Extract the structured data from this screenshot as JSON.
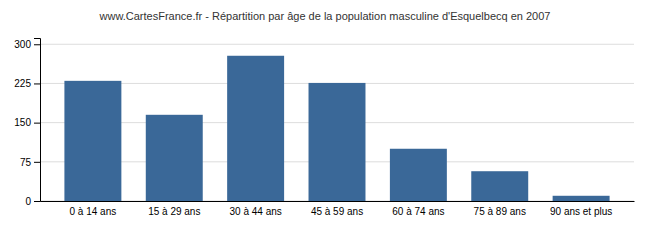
{
  "chart_data": {
    "type": "bar",
    "title": "www.CartesFrance.fr - Répartition par âge de la population masculine d'Esquelbecq en 2007",
    "categories": [
      "0 à 14 ans",
      "15 à 29 ans",
      "30 à 44 ans",
      "45 à 59 ans",
      "60 à 74 ans",
      "75 à 89 ans",
      "90 ans et plus"
    ],
    "values": [
      230,
      165,
      278,
      226,
      100,
      57,
      10
    ],
    "color": "#3a6898",
    "ylim": [
      0,
      312
    ],
    "yticks": [
      0,
      75,
      150,
      225,
      300
    ],
    "grid": true
  }
}
